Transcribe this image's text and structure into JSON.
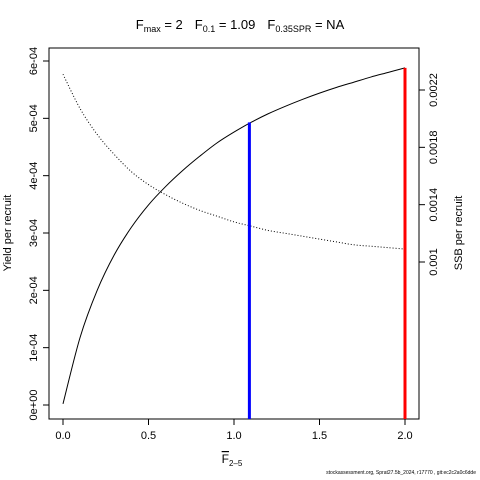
{
  "chart_data": {
    "type": "line",
    "title": {
      "fmax_label": "F",
      "fmax_sub": "max",
      "fmax_value": " = 2",
      "f01_label": "F",
      "f01_sub": "0.1",
      "f01_value": " = 1.09",
      "fspr_label": "F",
      "fspr_sub": "0.35SPR",
      "fspr_value": " = NA"
    },
    "xlabel": "F",
    "xlabel_sub": "2–5",
    "ylabel": "Yield per recruit",
    "y2label": "SSB per recruit",
    "footer": "stockassessment.org, Sprat27.5b_2024, r17770 , git:ec2c2a0c6dde",
    "xlim": [
      0,
      2
    ],
    "ylim": [
      0,
      0.0006
    ],
    "y2lim": [
      0.0004,
      0.0025
    ],
    "x_ticks": [
      0,
      0.5,
      1,
      1.5,
      2
    ],
    "x_tick_labels": [
      "0.0",
      "0.5",
      "1.0",
      "1.5",
      "2.0"
    ],
    "y_ticks": [
      0,
      0.0001,
      0.0002,
      0.0003,
      0.0004,
      0.0005,
      0.0006
    ],
    "y_tick_labels": [
      "0e+00",
      "1e-04",
      "2e-04",
      "3e-04",
      "4e-04",
      "5e-04",
      "6e-04"
    ],
    "y2_ticks": [
      0.001,
      0.0014,
      0.0018,
      0.0022
    ],
    "y2_tick_labels": [
      "0.001",
      "0.0014",
      "0.0018",
      "0.0022"
    ],
    "series": [
      {
        "style": "solid",
        "axis": "left",
        "x": [
          0,
          0.1,
          0.2,
          0.3,
          0.4,
          0.5,
          0.6,
          0.7,
          0.8,
          0.9,
          1.0,
          1.1,
          1.2,
          1.3,
          1.4,
          1.5,
          1.6,
          1.7,
          1.8,
          1.9,
          2.0
        ],
        "y": [
          2e-06,
          0.000118,
          0.0002,
          0.000262,
          0.00031,
          0.000349,
          0.000381,
          0.000409,
          0.000434,
          0.000457,
          0.000476,
          0.000493,
          0.000508,
          0.000521,
          0.000533,
          0.000544,
          0.000554,
          0.000563,
          0.000572,
          0.00058,
          0.000588
        ]
      },
      {
        "style": "dotted",
        "axis": "right",
        "x": [
          0,
          0.1,
          0.2,
          0.3,
          0.4,
          0.5,
          0.6,
          0.7,
          0.8,
          0.9,
          1.0,
          1.1,
          1.2,
          1.3,
          1.4,
          1.5,
          1.6,
          1.7,
          1.8,
          1.9,
          2.0
        ],
        "y": [
          0.00231,
          0.00207,
          0.00189,
          0.00175,
          0.00163,
          0.00154,
          0.00147,
          0.00141,
          0.00136,
          0.00132,
          0.00128,
          0.00125,
          0.00122,
          0.0012,
          0.00118,
          0.00116,
          0.00114,
          0.00112,
          0.00111,
          0.0011,
          0.00109
        ]
      }
    ],
    "reference_lines": [
      {
        "x": 1.09,
        "y": 0.000493,
        "color": "#0000ff",
        "label": "F0.1"
      },
      {
        "x": 2.0,
        "y": 0.000588,
        "color": "#ff0000",
        "label": "Fmax"
      }
    ]
  }
}
